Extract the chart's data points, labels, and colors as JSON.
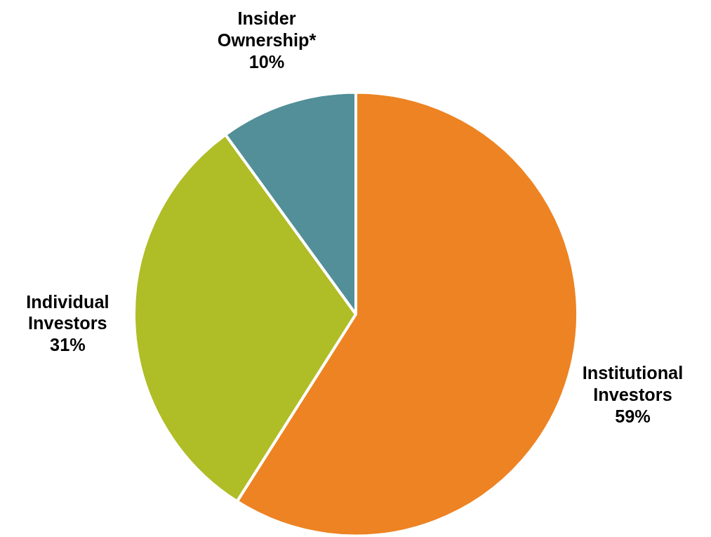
{
  "chart_data": {
    "type": "pie",
    "categories": [
      "Institutional Investors",
      "Individual Investors",
      "Insider Ownership*"
    ],
    "values": [
      59,
      31,
      10
    ],
    "colors": [
      "#ed8323",
      "#afbd27",
      "#528f98"
    ],
    "value_labels": [
      "59%",
      "31%",
      "10%"
    ]
  }
}
